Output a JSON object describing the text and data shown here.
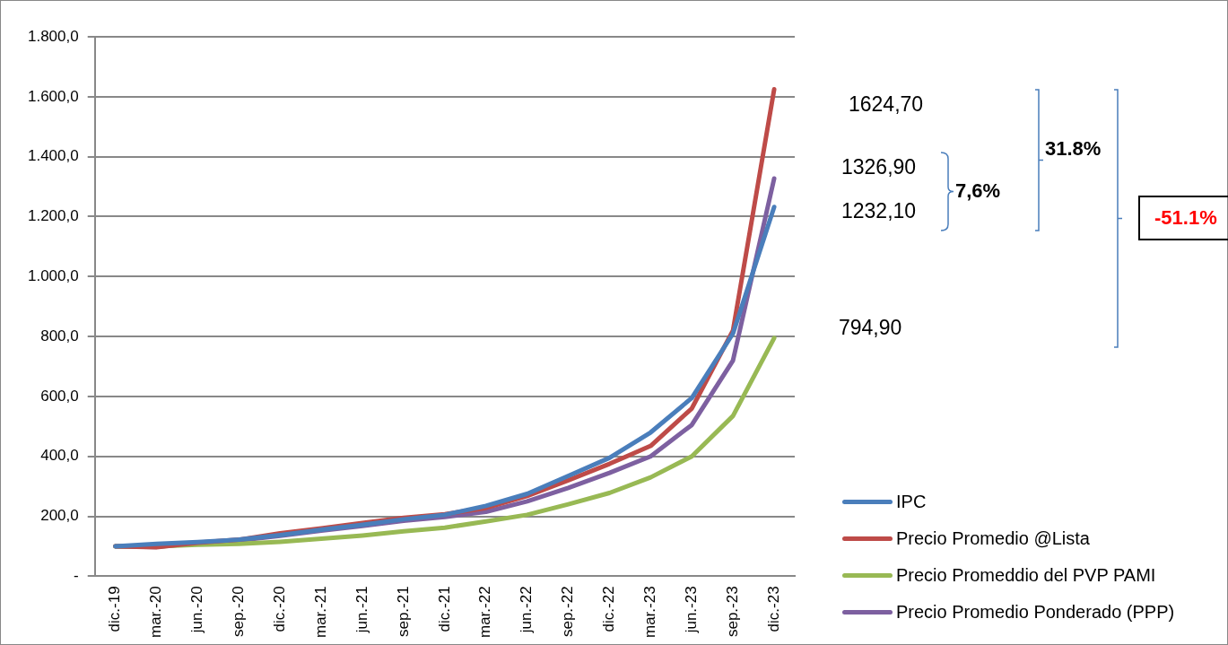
{
  "chart_data": {
    "type": "line",
    "categories": [
      "dic.-19",
      "mar.-20",
      "jun.-20",
      "sep.-20",
      "dic.-20",
      "mar.-21",
      "jun.-21",
      "sep.-21",
      "dic.-21",
      "mar.-22",
      "jun.-22",
      "sep.-22",
      "dic.-22",
      "mar.-23",
      "jun.-23",
      "sep.-23",
      "dic.-23"
    ],
    "series": [
      {
        "name": "IPC",
        "color": "#4a7ebb",
        "values": [
          100,
          108,
          114,
          122,
          137,
          155,
          172,
          190,
          205,
          235,
          275,
          335,
          395,
          480,
          595,
          810,
          1232.1
        ]
      },
      {
        "name": "Precio Promedio @Lista",
        "color": "#be4b48",
        "values": [
          100,
          97,
          112,
          122,
          143,
          160,
          178,
          195,
          207,
          228,
          268,
          320,
          375,
          435,
          560,
          820,
          1624.7
        ]
      },
      {
        "name": "Precio Promeddio del PVP PAMI",
        "color": "#98b954",
        "values": [
          100,
          100,
          105,
          108,
          115,
          125,
          136,
          150,
          162,
          183,
          205,
          240,
          278,
          330,
          400,
          535,
          794.9
        ]
      },
      {
        "name": "Precio Promedio Ponderado (PPP)",
        "color": "#7d60a0",
        "values": [
          100,
          98,
          112,
          119,
          135,
          152,
          168,
          185,
          198,
          215,
          250,
          295,
          345,
          400,
          505,
          720,
          1326.9
        ]
      }
    ],
    "ylim": [
      0,
      1800
    ],
    "yticks": [
      {
        "value": 0,
        "label": "-"
      },
      {
        "value": 200,
        "label": "200,0"
      },
      {
        "value": 400,
        "label": "400,0"
      },
      {
        "value": 600,
        "label": "600,0"
      },
      {
        "value": 800,
        "label": "800,0"
      },
      {
        "value": 1000,
        "label": "1.000,0"
      },
      {
        "value": 1200,
        "label": "1.200,0"
      },
      {
        "value": 1400,
        "label": "1.400,0"
      },
      {
        "value": 1600,
        "label": "1.600,0"
      },
      {
        "value": 1800,
        "label": "1.800,0"
      }
    ],
    "grid": "y",
    "legend": "bottom right",
    "marker": "none",
    "line_style": "solid",
    "annotations": [
      "1624,70",
      "1326,90",
      "1232,10",
      "794,90",
      "7,6%",
      "31.8%",
      "-51.1%"
    ]
  }
}
